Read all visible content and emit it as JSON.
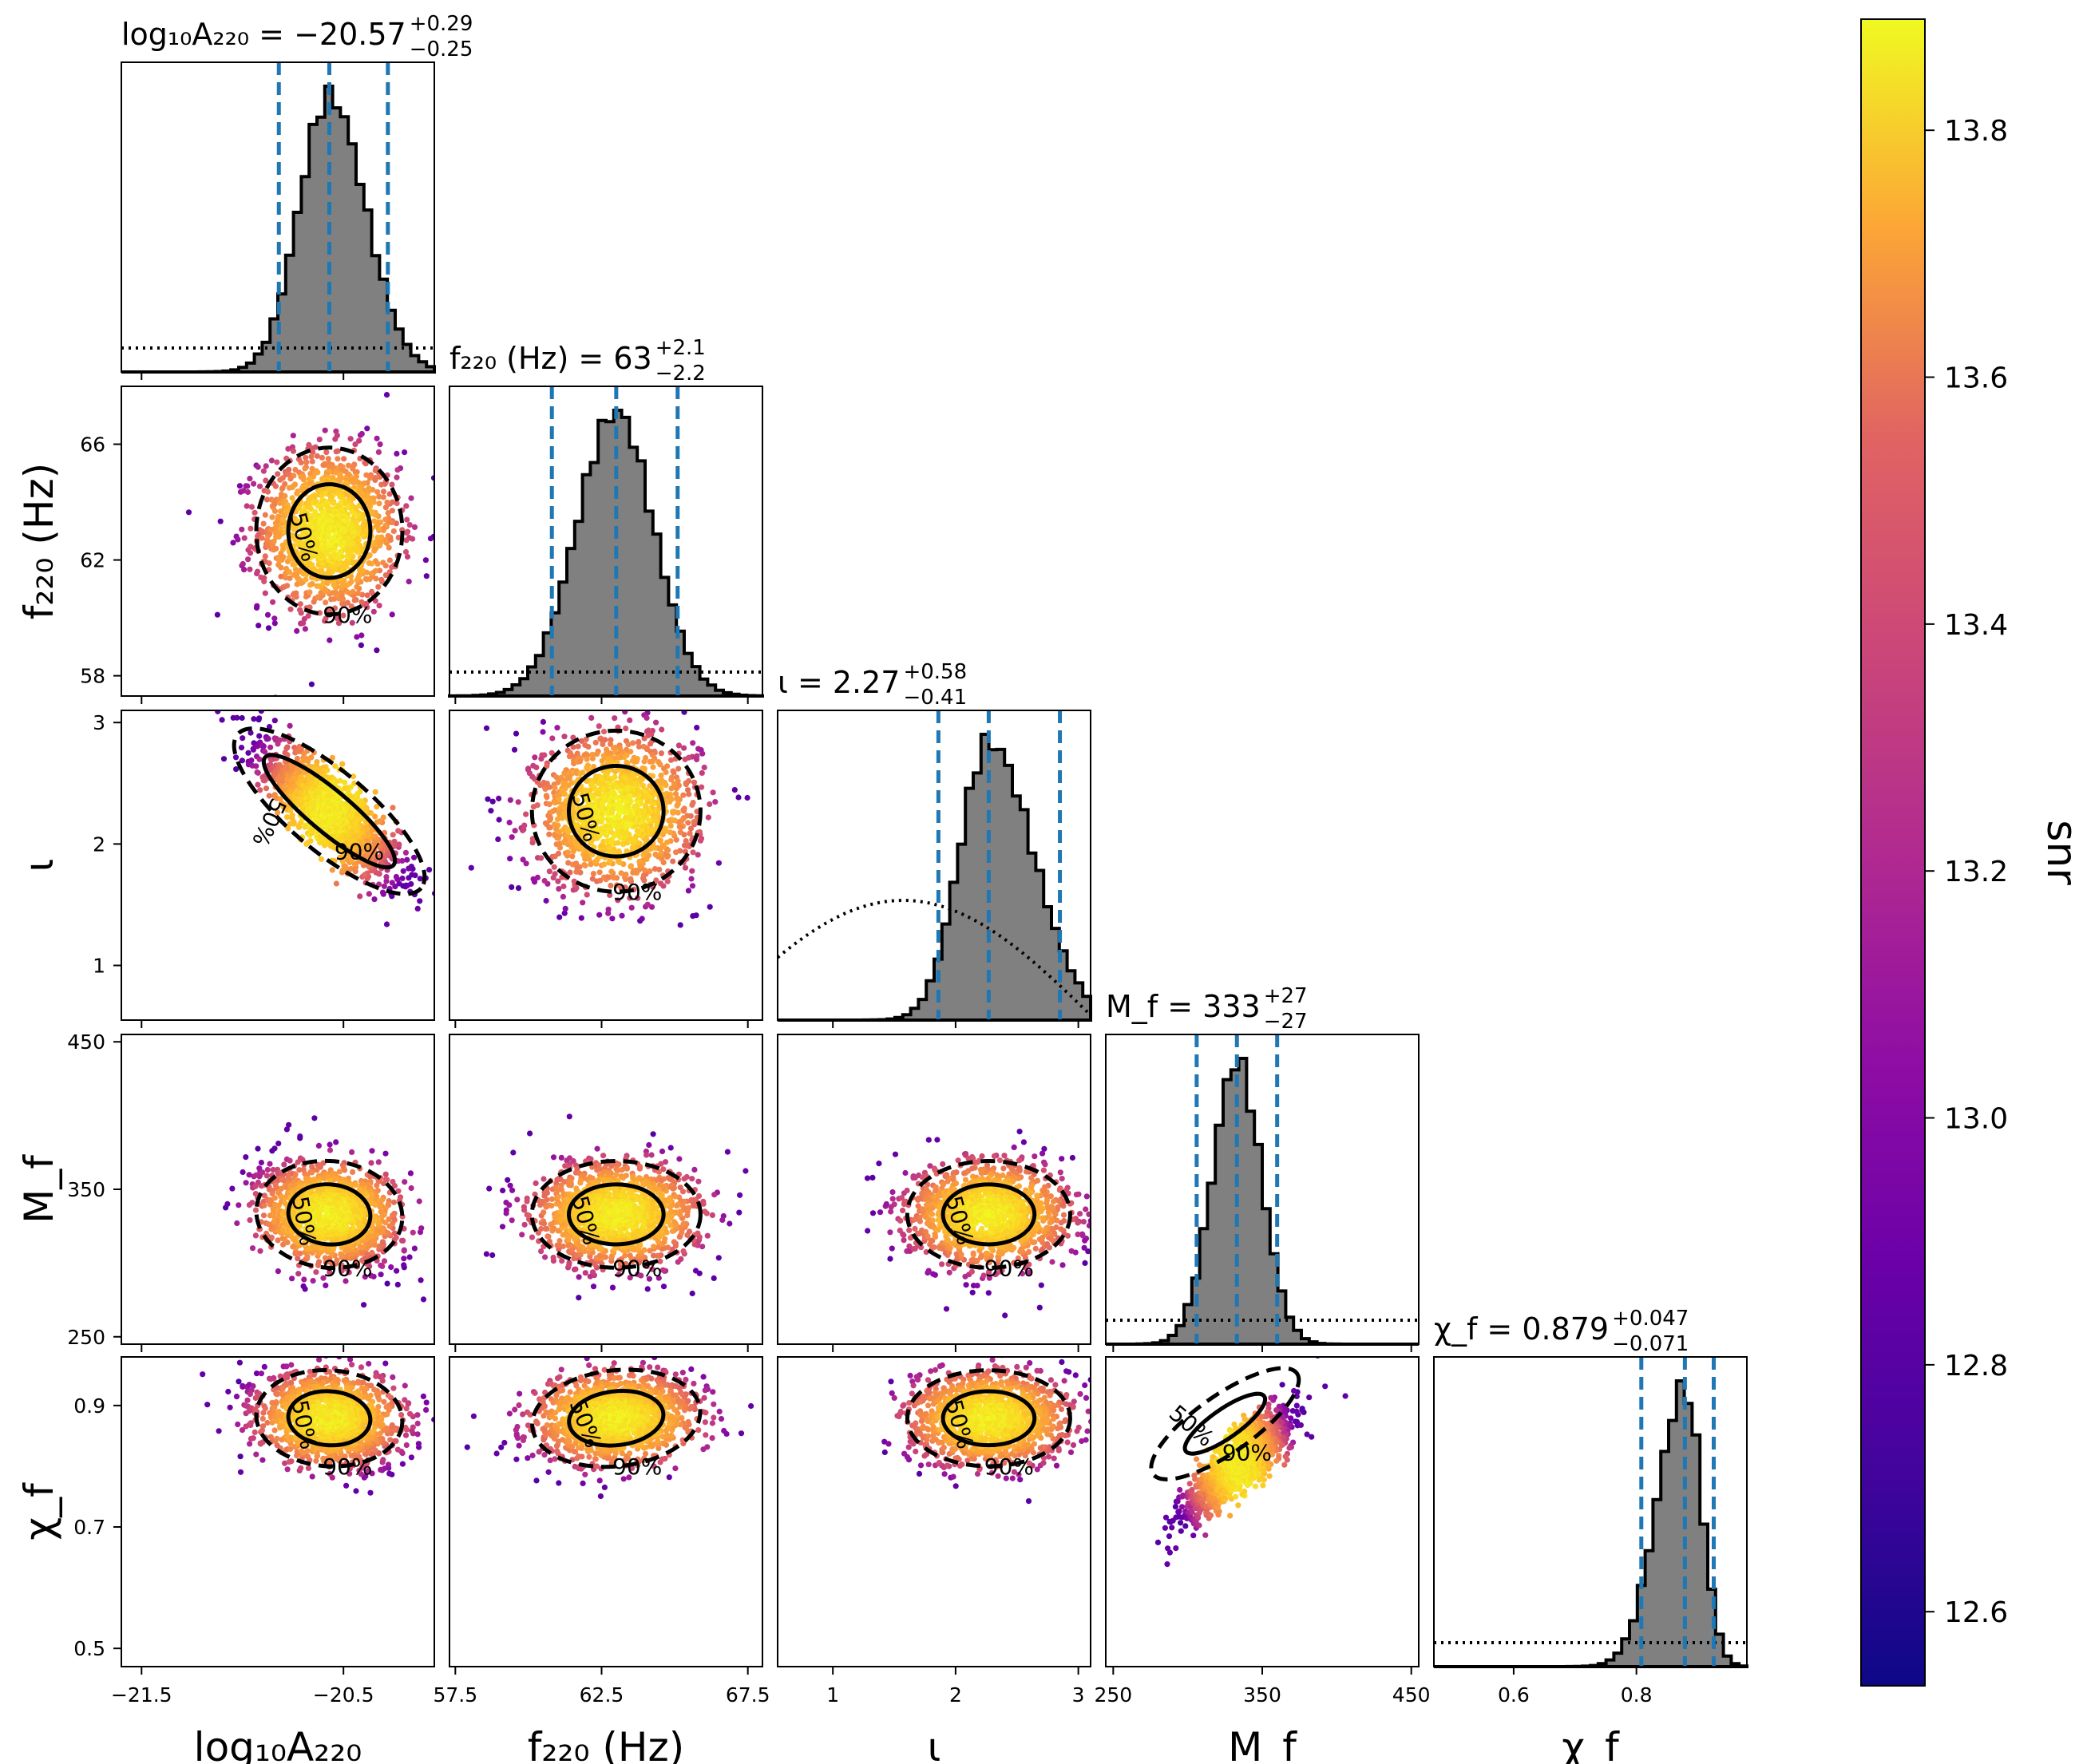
{
  "chart_data": {
    "type": "scatter",
    "subtype": "corner plot",
    "parameters": [
      {
        "key": "logA",
        "label": "log₁₀A₂₂₀",
        "lim": [
          -21.6,
          -20.05
        ],
        "ticks": [
          -21.5,
          -20.5
        ],
        "tick_labels": [
          "−21.5",
          "−20.5"
        ],
        "median": -20.57,
        "err_plus": 0.29,
        "err_minus": 0.25,
        "title_main": "log₁₀A₂₂₀ = −20.57",
        "title_sup": "+0.29",
        "title_sub": "−0.25"
      },
      {
        "key": "f220",
        "label": "f₂₂₀ (Hz)",
        "lim": [
          57.3,
          68.0
        ],
        "ticks": [
          57.5,
          62.5,
          67.5
        ],
        "tick_labels": [
          "57.5",
          "62.5",
          "67.5"
        ],
        "ytick_vals": [
          58,
          62,
          66
        ],
        "ytick_labels": [
          "58",
          "62",
          "66"
        ],
        "median": 63,
        "err_plus": 2.1,
        "err_minus": 2.2,
        "title_main": "f₂₂₀ (Hz) = 63",
        "title_sup": "+2.1",
        "title_sub": "−2.2"
      },
      {
        "key": "iota",
        "label": "ι",
        "lim": [
          0.55,
          3.1
        ],
        "ticks": [
          1,
          2,
          3
        ],
        "tick_labels": [
          "1",
          "2",
          "3"
        ],
        "ytick_vals": [
          1,
          2,
          3
        ],
        "ytick_labels": [
          "1",
          "2",
          "3"
        ],
        "median": 2.27,
        "err_plus": 0.58,
        "err_minus": 0.41,
        "title_main": "ι = 2.27",
        "title_sup": "+0.58",
        "title_sub": "−0.41"
      },
      {
        "key": "Mf",
        "label": "M_f",
        "lim": [
          245,
          455
        ],
        "ticks": [
          250,
          350,
          450
        ],
        "tick_labels": [
          "250",
          "350",
          "450"
        ],
        "ytick_vals": [
          250,
          350,
          450
        ],
        "ytick_labels": [
          "250",
          "350",
          "450"
        ],
        "median": 333,
        "err_plus": 27,
        "err_minus": 27,
        "title_main": "M_f = 333",
        "title_sup": "+27",
        "title_sub": "−27"
      },
      {
        "key": "chif",
        "label": "χ_f",
        "lim": [
          0.47,
          0.98
        ],
        "ticks": [
          0.6,
          0.8
        ],
        "tick_labels": [
          "0.6",
          "0.8"
        ],
        "ytick_vals": [
          0.5,
          0.7,
          0.9
        ],
        "ytick_labels": [
          "0.5",
          "0.7",
          "0.9"
        ],
        "median": 0.879,
        "err_plus": 0.047,
        "err_minus": 0.071,
        "title_main": "χ_f = 0.879",
        "title_sup": "+0.047",
        "title_sub": "−0.071"
      }
    ],
    "histograms": {
      "bins": 40,
      "fill_color": "#808080",
      "edge_color": "#000000",
      "quantile_line_color": "#1f77b4",
      "prior_style": "dotted"
    },
    "contour_labels": [
      "50%",
      "90%"
    ],
    "colorbar": {
      "label": "snr",
      "range": [
        12.54,
        13.89
      ],
      "ticks": [
        12.6,
        12.8,
        13.0,
        13.2,
        13.4,
        13.6,
        13.8
      ],
      "tick_labels": [
        "12.6",
        "12.8",
        "13.0",
        "13.2",
        "13.4",
        "13.6",
        "13.8"
      ],
      "colormap": "plasma"
    },
    "pairs": [
      {
        "x": "logA",
        "y": "f220",
        "corr": 0.0
      },
      {
        "x": "logA",
        "y": "iota",
        "corr": -0.88
      },
      {
        "x": "f220",
        "y": "iota",
        "corr": 0.0
      },
      {
        "x": "logA",
        "y": "Mf",
        "corr": -0.2
      },
      {
        "x": "f220",
        "y": "Mf",
        "corr": 0.0
      },
      {
        "x": "iota",
        "y": "Mf",
        "corr": 0.0
      },
      {
        "x": "logA",
        "y": "chif",
        "corr": -0.15
      },
      {
        "x": "f220",
        "y": "chif",
        "corr": 0.25
      },
      {
        "x": "iota",
        "y": "chif",
        "corr": 0.0
      },
      {
        "x": "Mf",
        "y": "chif",
        "corr": 0.93
      }
    ]
  }
}
